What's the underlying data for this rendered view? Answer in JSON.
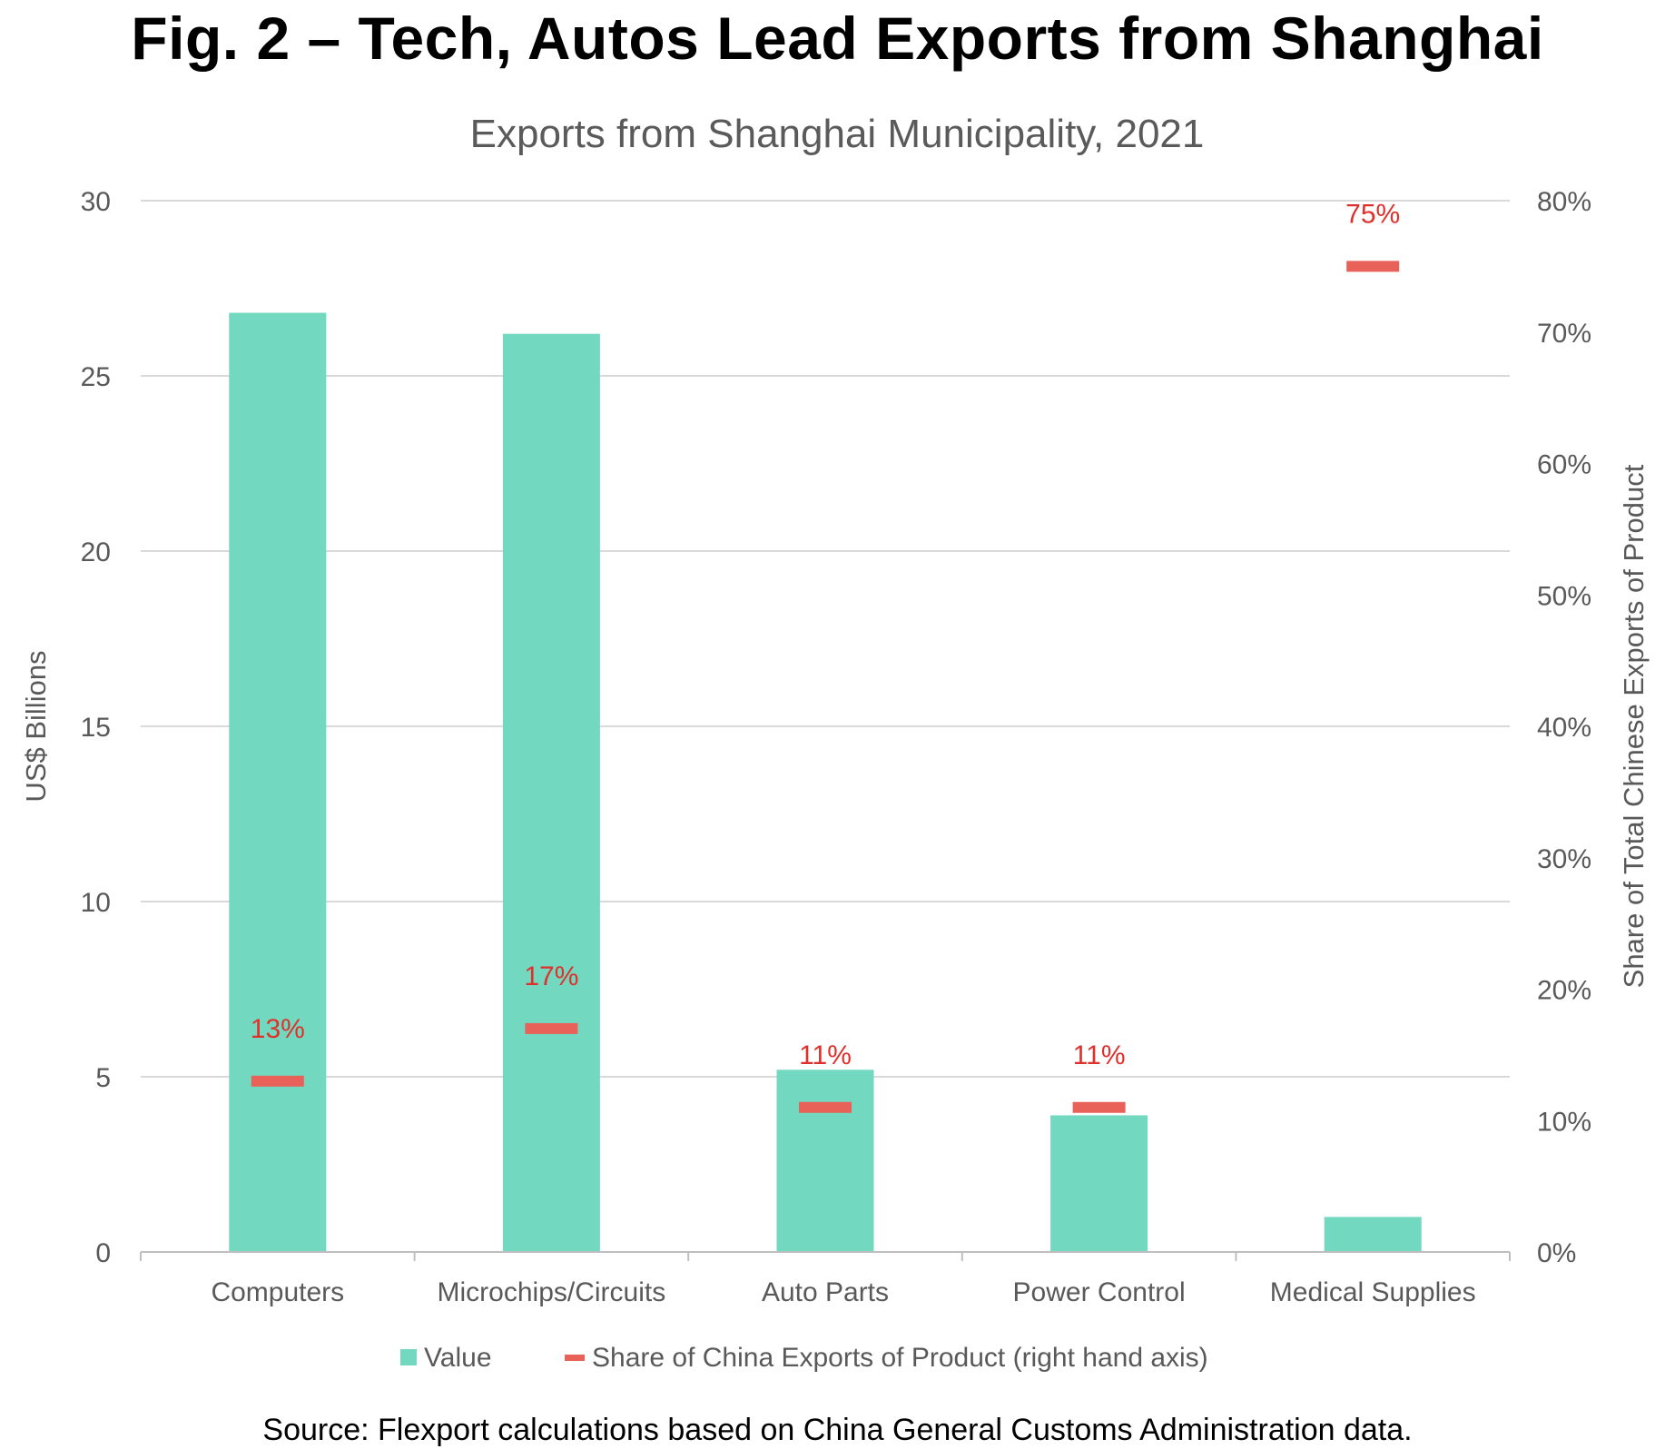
{
  "figure": {
    "title": "Fig. 2 – Tech, Autos Lead Exports from Shanghai",
    "source": "Source: Flexport calculations based on China General Customs Administration data."
  },
  "colors": {
    "bar": "#72d8bf",
    "marker": "#e8625a",
    "label": "#e0302b",
    "grid": "#d9d9d9"
  },
  "chart_data": {
    "type": "bar",
    "title": "Exports from Shanghai Municipality, 2021",
    "categories": [
      "Computers",
      "Microchips/Circuits",
      "Auto Parts",
      "Power Control",
      "Medical Supplies"
    ],
    "series": [
      {
        "name": "Value",
        "type": "bar",
        "axis": "left",
        "values": [
          26.8,
          26.2,
          5.2,
          3.9,
          1.0
        ]
      },
      {
        "name": "Share of China Exports of Product (right hand axis)",
        "type": "marker",
        "axis": "right",
        "values": [
          13,
          17,
          11,
          11,
          75
        ],
        "labels": [
          "13%",
          "17%",
          "11%",
          "11%",
          "75%"
        ]
      }
    ],
    "ylabel": "US$ Billions",
    "ylim": [
      0,
      30
    ],
    "yticks": [
      "0",
      "5",
      "10",
      "15",
      "20",
      "25",
      "30"
    ],
    "y2label": "Share of Total Chinese Exports of Product",
    "y2lim": [
      0,
      80
    ],
    "y2ticks": [
      "0%",
      "10%",
      "20%",
      "30%",
      "40%",
      "50%",
      "60%",
      "70%",
      "80%"
    ],
    "grid": true,
    "legend": [
      "Value",
      "Share of China Exports of Product (right hand axis)"
    ],
    "legend_position": "bottom"
  }
}
